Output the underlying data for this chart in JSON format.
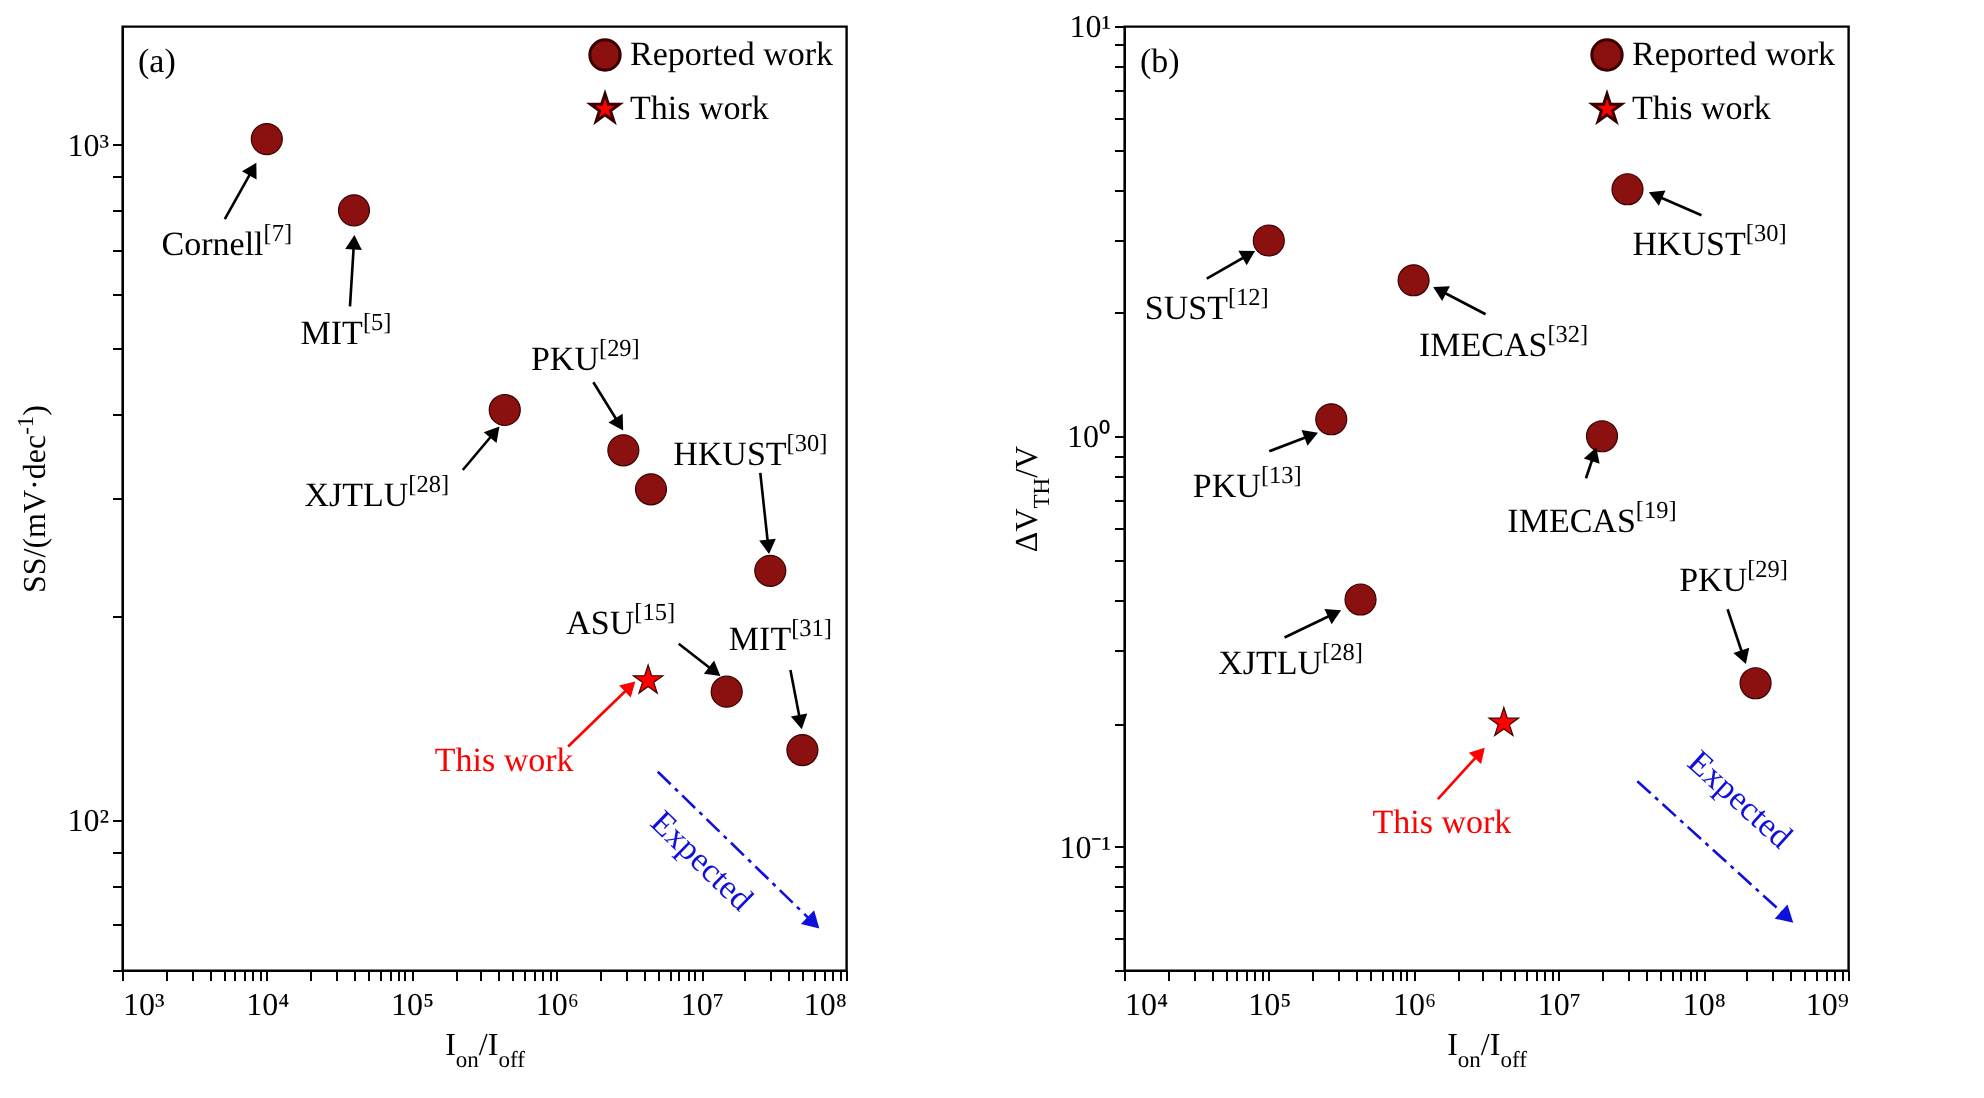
{
  "chart_data": [
    {
      "type": "scatter",
      "title": "(a)",
      "xlabel": "I$_{on}$/I$_{off}$",
      "ylabel": "SS/(mV·dec$^{-1}$)",
      "log": "xy",
      "grid": false,
      "legend": "top right",
      "xlim": [
        1000,
        100000000
      ],
      "ylim": [
        60,
        1500
      ],
      "xticks": [
        {
          "value": 1000,
          "label": "10³"
        },
        {
          "value": 2000,
          "label": null
        },
        {
          "value": 3000,
          "label": null
        },
        {
          "value": 4000,
          "label": null
        },
        {
          "value": 5000,
          "label": null
        },
        {
          "value": 6000,
          "label": null
        },
        {
          "value": 7000,
          "label": null
        },
        {
          "value": 8000,
          "label": null
        },
        {
          "value": 9000,
          "label": null
        },
        {
          "value": 10000,
          "label": "10⁴"
        },
        {
          "value": 20000,
          "label": null
        },
        {
          "value": 30000,
          "label": null
        },
        {
          "value": 40000,
          "label": null
        },
        {
          "value": 50000,
          "label": null
        },
        {
          "value": 60000,
          "label": null
        },
        {
          "value": 70000,
          "label": null
        },
        {
          "value": 80000,
          "label": null
        },
        {
          "value": 90000,
          "label": null
        },
        {
          "value": 100000,
          "label": "10⁵"
        },
        {
          "value": 200000,
          "label": null
        },
        {
          "value": 300000,
          "label": null
        },
        {
          "value": 400000,
          "label": null
        },
        {
          "value": 500000,
          "label": null
        },
        {
          "value": 600000,
          "label": null
        },
        {
          "value": 700000,
          "label": null
        },
        {
          "value": 800000,
          "label": null
        },
        {
          "value": 900000,
          "label": null
        },
        {
          "value": 1000000,
          "label": "10⁶"
        },
        {
          "value": 2000000,
          "label": null
        },
        {
          "value": 3000000,
          "label": null
        },
        {
          "value": 4000000,
          "label": null
        },
        {
          "value": 5000000,
          "label": null
        },
        {
          "value": 6000000,
          "label": null
        },
        {
          "value": 7000000,
          "label": null
        },
        {
          "value": 8000000,
          "label": null
        },
        {
          "value": 9000000,
          "label": null
        },
        {
          "value": 10000000,
          "label": "10⁷"
        },
        {
          "value": 20000000,
          "label": null
        },
        {
          "value": 30000000,
          "label": null
        },
        {
          "value": 40000000,
          "label": null
        },
        {
          "value": 50000000,
          "label": null
        },
        {
          "value": 60000000,
          "label": null
        },
        {
          "value": 70000000,
          "label": null
        },
        {
          "value": 80000000,
          "label": null
        },
        {
          "value": 90000000,
          "label": null
        },
        {
          "value": 100000000,
          "label": "10⁸"
        }
      ],
      "yticks": [
        {
          "value": 60,
          "label": null
        },
        {
          "value": 70,
          "label": null
        },
        {
          "value": 80,
          "label": null
        },
        {
          "value": 90,
          "label": null
        },
        {
          "value": 100,
          "label": "10²"
        },
        {
          "value": 200,
          "label": null
        },
        {
          "value": 300,
          "label": null
        },
        {
          "value": 400,
          "label": null
        },
        {
          "value": 500,
          "label": null
        },
        {
          "value": 600,
          "label": null
        },
        {
          "value": 700,
          "label": null
        },
        {
          "value": 800,
          "label": null
        },
        {
          "value": 900,
          "label": null
        },
        {
          "value": 1000,
          "label": "10³"
        }
      ],
      "series": [
        {
          "name": "Reported work",
          "color": "#8b1010",
          "marker": "circle",
          "x": [
            10000,
            40000,
            440000,
            2900000,
            4500000,
            30000000,
            15000000,
            50000000
          ],
          "values": [
            1020,
            800,
            405,
            353,
            309,
            234,
            155,
            127
          ]
        },
        {
          "name": "This work",
          "color": "#ff0000",
          "marker": "star",
          "x": [
            4300000
          ],
          "values": [
            161
          ]
        }
      ],
      "annotations": [
        {
          "text": "Cornell$^{[7]}$",
          "x": 10000,
          "y": 1020
        },
        {
          "text": "MIT$^{[5]}$",
          "x": 40000,
          "y": 800
        },
        {
          "text": "XJTLU$^{[28]}$",
          "x": 440000,
          "y": 405
        },
        {
          "text": "PKU$^{[29]}$",
          "x": 2900000,
          "y": 353
        },
        {
          "text": "HKUST$^{[30]}$",
          "x": 30000000,
          "y": 234
        },
        {
          "text": "ASU$^{[15]}$",
          "x": 15000000,
          "y": 155
        },
        {
          "text": "MIT$^{[31]}$",
          "x": 50000000,
          "y": 127
        },
        {
          "text": "This work",
          "x": 4300000,
          "y": 161
        },
        "Expected"
      ]
    },
    {
      "type": "scatter",
      "title": "(b)",
      "xlabel": "I$_{on}$/I$_{off}$",
      "ylabel": "ΔV$_{TH}$/V",
      "log": "xy",
      "grid": false,
      "legend": "top right",
      "xlim": [
        10000,
        1000000000
      ],
      "ylim": [
        0.05,
        10
      ],
      "xticks": [
        {
          "value": 10000,
          "label": "10⁴"
        },
        {
          "value": 20000,
          "label": null
        },
        {
          "value": 30000,
          "label": null
        },
        {
          "value": 40000,
          "label": null
        },
        {
          "value": 50000,
          "label": null
        },
        {
          "value": 60000,
          "label": null
        },
        {
          "value": 70000,
          "label": null
        },
        {
          "value": 80000,
          "label": null
        },
        {
          "value": 90000,
          "label": null
        },
        {
          "value": 100000,
          "label": "10⁵"
        },
        {
          "value": 200000,
          "label": null
        },
        {
          "value": 300000,
          "label": null
        },
        {
          "value": 400000,
          "label": null
        },
        {
          "value": 500000,
          "label": null
        },
        {
          "value": 600000,
          "label": null
        },
        {
          "value": 700000,
          "label": null
        },
        {
          "value": 800000,
          "label": null
        },
        {
          "value": 900000,
          "label": null
        },
        {
          "value": 1000000,
          "label": "10⁶"
        },
        {
          "value": 2000000,
          "label": null
        },
        {
          "value": 3000000,
          "label": null
        },
        {
          "value": 4000000,
          "label": null
        },
        {
          "value": 5000000,
          "label": null
        },
        {
          "value": 6000000,
          "label": null
        },
        {
          "value": 7000000,
          "label": null
        },
        {
          "value": 8000000,
          "label": null
        },
        {
          "value": 9000000,
          "label": null
        },
        {
          "value": 10000000,
          "label": "10⁷"
        },
        {
          "value": 20000000,
          "label": null
        },
        {
          "value": 30000000,
          "label": null
        },
        {
          "value": 40000000,
          "label": null
        },
        {
          "value": 50000000,
          "label": null
        },
        {
          "value": 60000000,
          "label": null
        },
        {
          "value": 70000000,
          "label": null
        },
        {
          "value": 80000000,
          "label": null
        },
        {
          "value": 90000000,
          "label": null
        },
        {
          "value": 100000000,
          "label": "10⁸"
        },
        {
          "value": 200000000,
          "label": null
        },
        {
          "value": 300000000,
          "label": null
        },
        {
          "value": 400000000,
          "label": null
        },
        {
          "value": 500000000,
          "label": null
        },
        {
          "value": 600000000,
          "label": null
        },
        {
          "value": 700000000,
          "label": null
        },
        {
          "value": 800000000,
          "label": null
        },
        {
          "value": 900000000,
          "label": null
        },
        {
          "value": 1000000000,
          "label": "10⁹"
        }
      ],
      "yticks": [
        {
          "value": 0.05,
          "label": null
        },
        {
          "value": 0.06,
          "label": null
        },
        {
          "value": 0.07,
          "label": null
        },
        {
          "value": 0.08,
          "label": null
        },
        {
          "value": 0.09,
          "label": null
        },
        {
          "value": 0.1,
          "label": "10⁻¹"
        },
        {
          "value": 0.2,
          "label": null
        },
        {
          "value": 0.3,
          "label": null
        },
        {
          "value": 0.4,
          "label": null
        },
        {
          "value": 0.5,
          "label": null
        },
        {
          "value": 0.6,
          "label": null
        },
        {
          "value": 0.7,
          "label": null
        },
        {
          "value": 0.8,
          "label": null
        },
        {
          "value": 0.9,
          "label": null
        },
        {
          "value": 1,
          "label": "10⁰"
        },
        {
          "value": 2,
          "label": null
        },
        {
          "value": 3,
          "label": null
        },
        {
          "value": 4,
          "label": null
        },
        {
          "value": 5,
          "label": null
        },
        {
          "value": 6,
          "label": null
        },
        {
          "value": 7,
          "label": null
        },
        {
          "value": 8,
          "label": null
        },
        {
          "value": 9,
          "label": null
        },
        {
          "value": 10,
          "label": "10¹"
        }
      ],
      "series": [
        {
          "name": "Reported work",
          "color": "#8b1010",
          "marker": "circle",
          "x": [
            100000,
            1000000,
            30000000,
            270000,
            20000000,
            430000,
            230000000
          ],
          "values": [
            3.0,
            2.4,
            4.0,
            1.1,
            1.0,
            0.4,
            0.25
          ]
        },
        {
          "name": "This work",
          "color": "#ff0000",
          "marker": "star",
          "x": [
            4200000
          ],
          "values": [
            0.2
          ]
        }
      ],
      "annotations": [
        {
          "text": "SUST$^{[12]}$",
          "x": 100000,
          "y": 3.0
        },
        {
          "text": "IMECAS$^{[32]}$",
          "x": 1000000,
          "y": 2.4
        },
        {
          "text": "HKUST$^{[30]}$",
          "x": 30000000,
          "y": 4.0
        },
        {
          "text": "PKU$^{[13]}$",
          "x": 270000,
          "y": 1.1
        },
        {
          "text": "IMECAS$^{[19]}$",
          "x": 20000000,
          "y": 1.0
        },
        {
          "text": "XJTLU$^{[28]}$",
          "x": 430000,
          "y": 0.4
        },
        {
          "text": "PKU$^{[29]}$",
          "x": 230000000,
          "y": 0.25
        },
        {
          "text": "This work",
          "x": 4200000,
          "y": 0.2
        },
        "Expected"
      ]
    }
  ]
}
